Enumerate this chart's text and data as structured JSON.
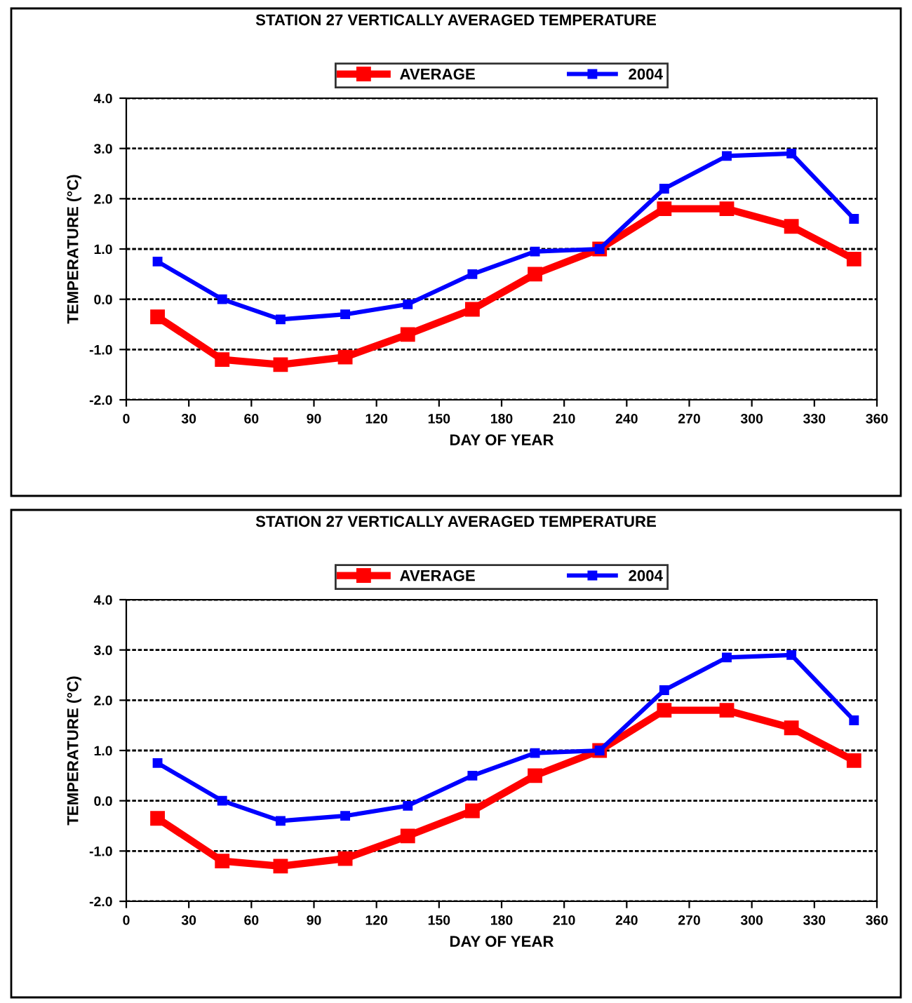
{
  "chart_data": [
    {
      "type": "line",
      "title": "STATION 27 VERTICALLY AVERAGED TEMPERATURE",
      "xlabel": "DAY OF YEAR",
      "ylabel": "TEMPERATURE (°C)",
      "x": [
        15,
        46,
        74,
        105,
        135,
        166,
        196,
        227,
        258,
        288,
        319,
        349
      ],
      "series": [
        {
          "name": "AVERAGE",
          "color": "#ff0000",
          "values": [
            -0.35,
            -1.2,
            -1.3,
            -1.15,
            -0.7,
            -0.2,
            0.5,
            1.0,
            1.8,
            1.8,
            1.45,
            0.8
          ]
        },
        {
          "name": "2004",
          "color": "#0000ff",
          "values": [
            0.75,
            0.0,
            -0.4,
            -0.3,
            -0.1,
            0.5,
            0.95,
            1.0,
            2.2,
            2.85,
            2.9,
            1.6
          ]
        }
      ],
      "xlim": [
        0,
        360
      ],
      "xticks": [
        0,
        30,
        60,
        90,
        120,
        150,
        180,
        210,
        240,
        270,
        300,
        330,
        360
      ],
      "ylim": [
        -2,
        4
      ],
      "yticks": [
        {
          "value": -2,
          "label": "-2.0"
        },
        {
          "value": -1,
          "label": "-1.0"
        },
        {
          "value": 0,
          "label": "0.0"
        },
        {
          "value": 1,
          "label": "1.0"
        },
        {
          "value": 2,
          "label": "2.0"
        },
        {
          "value": 3,
          "label": "3.0"
        },
        {
          "value": 4,
          "label": "4.0"
        }
      ],
      "grid": "y",
      "legend": "top",
      "marker": "square",
      "line_style": "solid"
    },
    {
      "type": "line",
      "title": "STATION 27 VERTICALLY AVERAGED TEMPERATURE",
      "xlabel": "DAY OF YEAR",
      "ylabel": "TEMPERATURE (°C)",
      "x": [
        15,
        46,
        74,
        105,
        135,
        166,
        196,
        227,
        258,
        288,
        319,
        349
      ],
      "series": [
        {
          "name": "AVERAGE",
          "color": "#ff0000",
          "values": [
            -0.35,
            -1.2,
            -1.3,
            -1.15,
            -0.7,
            -0.2,
            0.5,
            1.0,
            1.8,
            1.8,
            1.45,
            0.8
          ]
        },
        {
          "name": "2004",
          "color": "#0000ff",
          "values": [
            0.75,
            0.0,
            -0.4,
            -0.3,
            -0.1,
            0.5,
            0.95,
            1.0,
            2.2,
            2.85,
            2.9,
            1.6
          ]
        }
      ],
      "xlim": [
        0,
        360
      ],
      "xticks": [
        0,
        30,
        60,
        90,
        120,
        150,
        180,
        210,
        240,
        270,
        300,
        330,
        360
      ],
      "ylim": [
        -2,
        4
      ],
      "yticks": [
        {
          "value": -2,
          "label": "-2.0"
        },
        {
          "value": -1,
          "label": "-1.0"
        },
        {
          "value": 0,
          "label": "0.0"
        },
        {
          "value": 1,
          "label": "1.0"
        },
        {
          "value": 2,
          "label": "2.0"
        },
        {
          "value": 3,
          "label": "3.0"
        },
        {
          "value": 4,
          "label": "4.0"
        }
      ],
      "grid": "y",
      "legend": "top",
      "marker": "square",
      "line_style": "solid"
    }
  ]
}
